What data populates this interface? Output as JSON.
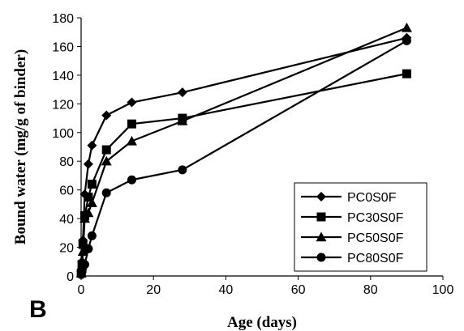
{
  "chart_data": {
    "type": "line",
    "panel_label": "B",
    "xlabel": "Age (days)",
    "ylabel": "Bound water (mg/g of binder)",
    "xlim": [
      0,
      100
    ],
    "ylim": [
      0,
      180
    ],
    "xticks": [
      0,
      20,
      40,
      60,
      80,
      100
    ],
    "yticks": [
      0,
      20,
      40,
      60,
      80,
      100,
      120,
      140,
      160,
      180
    ],
    "grid": false,
    "legend_position": "bottom-right",
    "series": [
      {
        "name": "PC0S0F",
        "marker": "diamond",
        "x": [
          0.04,
          0.25,
          0.5,
          1,
          2,
          3,
          7,
          14,
          28,
          90
        ],
        "y": [
          3,
          10,
          25,
          57,
          78,
          91,
          112,
          121,
          128,
          166
        ]
      },
      {
        "name": "PC30S0F",
        "marker": "square",
        "x": [
          0.04,
          0.25,
          0.5,
          1,
          2,
          3,
          7,
          14,
          28,
          90
        ],
        "y": [
          2,
          8,
          22,
          42,
          55,
          64,
          88,
          106,
          110,
          141
        ]
      },
      {
        "name": "PC50S0F",
        "marker": "triangle",
        "x": [
          0.04,
          0.25,
          0.5,
          1,
          2,
          3,
          7,
          14,
          28,
          90
        ],
        "y": [
          2,
          7,
          17,
          40,
          44,
          51,
          80,
          94,
          108,
          173
        ]
      },
      {
        "name": "PC80S0F",
        "marker": "circle",
        "x": [
          0.04,
          0.25,
          0.5,
          1,
          2,
          3,
          7,
          14,
          28,
          90
        ],
        "y": [
          1,
          3,
          7,
          8,
          19,
          28,
          58,
          67,
          74,
          164
        ]
      }
    ]
  }
}
